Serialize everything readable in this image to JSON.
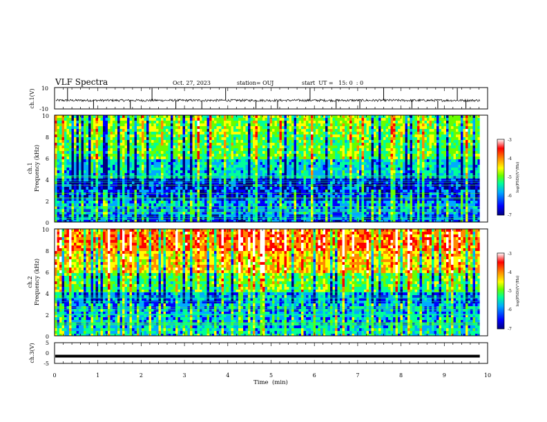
{
  "header": {
    "title": "VLF Spectra",
    "date": "Oct. 27, 2023",
    "station": "station= OUJ",
    "start": "start  UT =   15: 0  : 0"
  },
  "chart_data": [
    {
      "type": "line",
      "panel": "ch1-waveform",
      "ylabel": "ch.1(V)",
      "xlim": [
        0,
        10
      ],
      "ylim": [
        -10,
        10
      ],
      "yticks": [
        "10",
        "-10"
      ],
      "baseline": -2,
      "spikes_min": [
        0.3,
        0.9,
        1.75,
        2.25,
        2.8,
        3.4,
        3.95,
        4.65,
        5.15,
        5.9,
        6.5,
        7.05,
        7.6,
        8.25,
        8.85,
        9.3,
        9.5
      ],
      "x_end": 9.82,
      "color": "#000000"
    },
    {
      "type": "heatmap",
      "panel": "ch1-spectrogram",
      "ylabel": "ch.1",
      "ylabel2": "Frequency (kHz)",
      "xlim": [
        0,
        10
      ],
      "ylim": [
        0,
        10
      ],
      "yticks": [
        "0",
        "2",
        "4",
        "6",
        "8",
        "10"
      ],
      "data_end_min": 9.82,
      "colorbar": {
        "label": "log(PSD)(V²/Hz)",
        "range": [
          -7,
          -3
        ],
        "ticks": [
          "-3",
          "-4",
          "-5",
          "-6",
          "-7"
        ]
      },
      "colormap": [
        "#000080",
        "#0000ff",
        "#00aaff",
        "#00ff99",
        "#66ff00",
        "#ffff00",
        "#ff8800",
        "#ff0000",
        "#ffffff"
      ],
      "levels_by_freq_khz": [
        {
          "f_lo": 0,
          "f_hi": 0.6,
          "level": 0.15
        },
        {
          "f_lo": 0.6,
          "f_hi": 2.0,
          "level": 0.22
        },
        {
          "f_lo": 2.0,
          "f_hi": 4.0,
          "level": 0.12
        },
        {
          "f_lo": 4.0,
          "f_hi": 6.0,
          "level": 0.3
        },
        {
          "f_lo": 6.0,
          "f_hi": 8.0,
          "level": 0.45
        },
        {
          "f_lo": 8.0,
          "f_hi": 10.0,
          "level": 0.5
        }
      ]
    },
    {
      "type": "heatmap",
      "panel": "ch2-spectrogram",
      "ylabel": "ch.2",
      "ylabel2": "Frequency (kHz)",
      "xlim": [
        0,
        10
      ],
      "ylim": [
        0,
        10
      ],
      "yticks": [
        "0",
        "2",
        "4",
        "6",
        "8",
        "10"
      ],
      "data_end_min": 9.82,
      "colorbar": {
        "label": "log(PSD)(V²/Hz)",
        "range": [
          -7,
          -3
        ],
        "ticks": [
          "-3",
          "-4",
          "-5",
          "-6",
          "-7"
        ]
      },
      "colormap": [
        "#000080",
        "#0000ff",
        "#00aaff",
        "#00ff99",
        "#66ff00",
        "#ffff00",
        "#ff8800",
        "#ff0000",
        "#ffffff"
      ],
      "levels_by_freq_khz": [
        {
          "f_lo": 0,
          "f_hi": 0.6,
          "level": 0.3
        },
        {
          "f_lo": 0.6,
          "f_hi": 2.0,
          "level": 0.25
        },
        {
          "f_lo": 2.0,
          "f_hi": 4.0,
          "level": 0.22
        },
        {
          "f_lo": 4.0,
          "f_hi": 6.0,
          "level": 0.45
        },
        {
          "f_lo": 6.0,
          "f_hi": 8.0,
          "level": 0.65
        },
        {
          "f_lo": 8.0,
          "f_hi": 10.0,
          "level": 0.78
        }
      ]
    },
    {
      "type": "line",
      "panel": "ch3-waveform",
      "ylabel": "ch.3(V)",
      "xlabel": "Time  (min)",
      "xlim": [
        0,
        10
      ],
      "ylim": [
        -5,
        5
      ],
      "yticks": [
        "5",
        "0",
        "-5"
      ],
      "xticks": [
        "0",
        "1",
        "2",
        "3",
        "4",
        "5",
        "6",
        "7",
        "8",
        "9",
        "10"
      ],
      "value": -1.5,
      "x_end": 9.82,
      "color": "#000000"
    }
  ]
}
